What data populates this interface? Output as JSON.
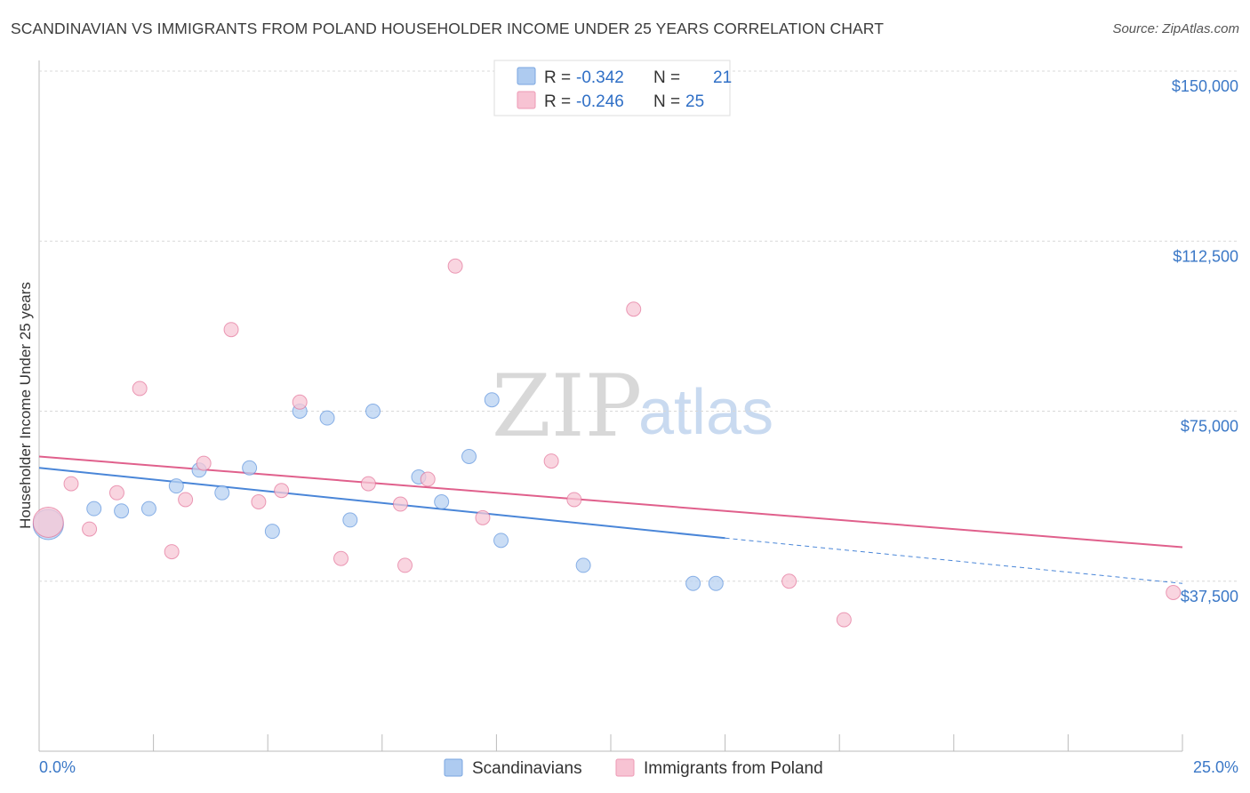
{
  "title": "SCANDINAVIAN VS IMMIGRANTS FROM POLAND HOUSEHOLDER INCOME UNDER 25 YEARS CORRELATION CHART",
  "source": "Source: ZipAtlas.com",
  "watermark": {
    "zip": "ZIP",
    "atlas": "atlas"
  },
  "legend_box": {
    "rows": [
      {
        "r_label": "R = ",
        "r_value": "-0.342",
        "n_label": "N = ",
        "n_value": "21",
        "color": "#aecbf0"
      },
      {
        "r_label": "R = ",
        "r_value": "-0.246",
        "n_label": "N = ",
        "n_value": "25",
        "color": "#f7c3d3"
      }
    ]
  },
  "bottom_legend": [
    {
      "label": "Scandinavians",
      "color": "#aecbf0"
    },
    {
      "label": "Immigrants from Poland",
      "color": "#f7c3d3"
    }
  ],
  "chart_data": {
    "type": "scatter",
    "title": "SCANDINAVIAN VS IMMIGRANTS FROM POLAND HOUSEHOLDER INCOME UNDER 25 YEARS CORRELATION CHART",
    "xlabel": "",
    "ylabel": "Householder Income Under 25 years",
    "xlim": [
      0,
      25
    ],
    "ylim": [
      0,
      150000
    ],
    "x_tick_labels": [
      "0.0%",
      "25.0%"
    ],
    "y_ticks": [
      37500,
      75000,
      112500,
      150000
    ],
    "y_tick_labels": [
      "$37,500",
      "$75,000",
      "$112,500",
      "$150,000"
    ],
    "grid": true,
    "series": [
      {
        "name": "Scandinavians",
        "color": "#4a86d8",
        "fill": "#b8d2f2",
        "points": [
          {
            "x": 0.2,
            "y": 50000,
            "big": true
          },
          {
            "x": 1.2,
            "y": 53500
          },
          {
            "x": 1.8,
            "y": 53000
          },
          {
            "x": 2.4,
            "y": 53500
          },
          {
            "x": 3.0,
            "y": 58500
          },
          {
            "x": 3.5,
            "y": 62000
          },
          {
            "x": 4.0,
            "y": 57000
          },
          {
            "x": 4.6,
            "y": 62500
          },
          {
            "x": 5.1,
            "y": 48500
          },
          {
            "x": 5.7,
            "y": 75000
          },
          {
            "x": 6.3,
            "y": 73500
          },
          {
            "x": 6.8,
            "y": 51000
          },
          {
            "x": 7.3,
            "y": 75000
          },
          {
            "x": 8.3,
            "y": 60500
          },
          {
            "x": 8.8,
            "y": 55000
          },
          {
            "x": 9.4,
            "y": 65000
          },
          {
            "x": 9.9,
            "y": 77500
          },
          {
            "x": 10.1,
            "y": 46500
          },
          {
            "x": 11.9,
            "y": 41000
          },
          {
            "x": 14.3,
            "y": 37000
          },
          {
            "x": 14.8,
            "y": 37000
          }
        ],
        "trend": {
          "x0": 0,
          "y0": 62500,
          "x1": 15.0,
          "y1": 47000,
          "x_dash_end": 25,
          "y_dash_end": 37000
        }
      },
      {
        "name": "Immigrants from Poland",
        "color": "#e0608c",
        "fill": "#f7c7d6",
        "points": [
          {
            "x": 0.2,
            "y": 50500,
            "big": true
          },
          {
            "x": 0.7,
            "y": 59000
          },
          {
            "x": 1.1,
            "y": 49000
          },
          {
            "x": 1.7,
            "y": 57000
          },
          {
            "x": 2.2,
            "y": 80000
          },
          {
            "x": 2.9,
            "y": 44000
          },
          {
            "x": 3.2,
            "y": 55500
          },
          {
            "x": 3.6,
            "y": 63500
          },
          {
            "x": 4.2,
            "y": 93000
          },
          {
            "x": 4.8,
            "y": 55000
          },
          {
            "x": 5.3,
            "y": 57500
          },
          {
            "x": 5.7,
            "y": 77000
          },
          {
            "x": 6.6,
            "y": 42500
          },
          {
            "x": 7.2,
            "y": 59000
          },
          {
            "x": 7.9,
            "y": 54500
          },
          {
            "x": 8.0,
            "y": 41000
          },
          {
            "x": 8.5,
            "y": 60000
          },
          {
            "x": 9.1,
            "y": 107000
          },
          {
            "x": 9.7,
            "y": 51500
          },
          {
            "x": 11.2,
            "y": 64000
          },
          {
            "x": 11.7,
            "y": 55500
          },
          {
            "x": 13.0,
            "y": 97500
          },
          {
            "x": 16.4,
            "y": 37500
          },
          {
            "x": 17.6,
            "y": 29000
          },
          {
            "x": 24.8,
            "y": 35000
          }
        ],
        "trend": {
          "x0": 0,
          "y0": 65000,
          "x1": 25,
          "y1": 45000
        }
      }
    ],
    "legend": [
      {
        "name": "Scandinavians",
        "R": -0.342,
        "N": 21
      },
      {
        "name": "Immigrants from Poland",
        "R": -0.246,
        "N": 25
      }
    ]
  }
}
